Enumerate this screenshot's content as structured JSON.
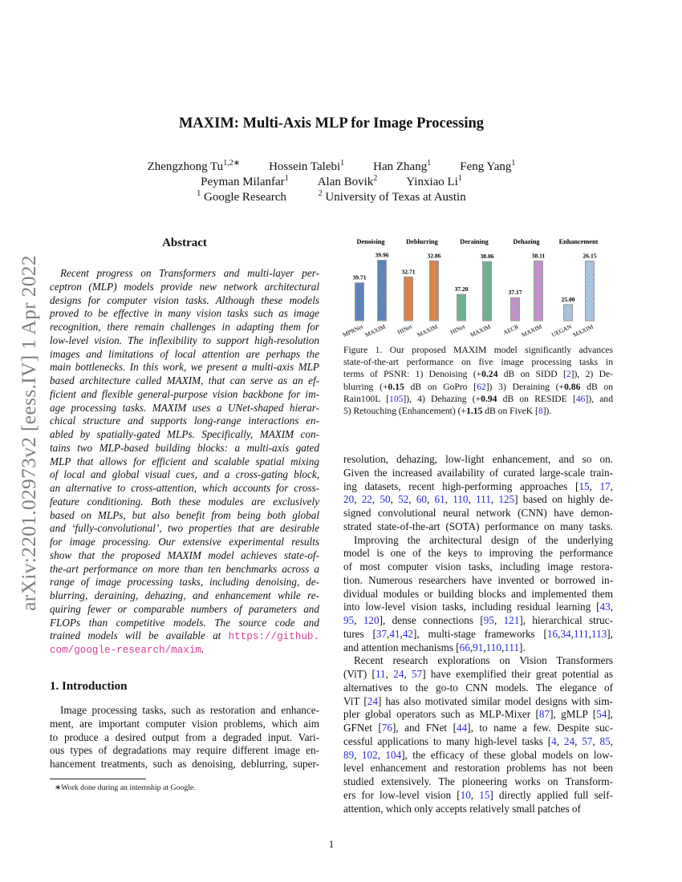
{
  "arxiv_stamp": "arXiv:2201.02973v2  [eess.IV]  1 Apr 2022",
  "title": "MAXIM: Multi-Axis MLP for Image Processing",
  "authors_rows": [
    [
      {
        "name": "Zhengzhong Tu",
        "sup": "1,2∗"
      },
      {
        "name": "Hossein Talebi",
        "sup": "1"
      },
      {
        "name": "Han Zhang",
        "sup": "1"
      },
      {
        "name": "Feng Yang",
        "sup": "1"
      }
    ],
    [
      {
        "name": "Peyman Milanfar",
        "sup": "1"
      },
      {
        "name": "Alan Bovik",
        "sup": "2"
      },
      {
        "name": "Yinxiao Li",
        "sup": "1"
      }
    ]
  ],
  "affiliations": [
    {
      "sup": "1",
      "name": "Google Research"
    },
    {
      "sup": "2",
      "name": "University of Texas at Austin"
    }
  ],
  "abstract": {
    "heading": "Abstract",
    "lines": [
      "Recent progress on Transformers and multi-layer per-",
      "ceptron (MLP) models provide new network architectural",
      "designs for computer vision tasks. Although these models",
      "proved to be effective in many vision tasks such as image",
      "recognition, there remain challenges in adapting them for",
      "low-level vision. The inflexibility to support high-resolution",
      "images and limitations of local attention are perhaps the",
      "main bottlenecks. In this work, we present a multi-axis MLP",
      "based architecture called MAXIM, that can serve as an ef-",
      "ficient and flexible general-purpose vision backbone for im-",
      "age processing tasks. MAXIM uses a UNet-shaped hierar-",
      "chical structure and supports long-range interactions en-",
      "abled by spatially-gated MLPs. Specifically, MAXIM con-",
      "tains two MLP-based building blocks: a multi-axis gated",
      "MLP that allows for efficient and scalable spatial mixing",
      "of local and global visual cues, and a cross-gating block,",
      "an alternative to cross-attention, which accounts for cross-",
      "feature conditioning. Both these modules are exclusively",
      "based on MLPs, but also benefit from being both global",
      "and ‘fully-convolutional’, two properties that are desirable",
      "for image processing. Our extensive experimental results",
      "show that the proposed MAXIM model achieves state-of-",
      "the-art performance on more than ten benchmarks across a",
      "range of image processing tasks, including denoising, de-",
      "blurring, deraining, dehazing, and enhancement while re-",
      "quiring fewer or comparable numbers of parameters and",
      "FLOPs than competitive models. The source code and"
    ],
    "line_pre_url": "trained models will be available at",
    "url_part1": "https://github.",
    "url_part2": "com/google-research/maxim",
    "url_end": "."
  },
  "introduction": {
    "heading": "1. Introduction",
    "lines": [
      "Image processing tasks, such as restoration and enhance-",
      "ment, are important computer vision problems, which aim",
      "to produce a desired output from a degraded input. Vari-",
      "ous types of degradations may require different image en-",
      "hancement treatments, such as denoising, deblurring, super-"
    ]
  },
  "footnote": "∗Work done during an internship at Google.",
  "figure_caption": [
    "Figure 1.  Our proposed MAXIM model significantly advances",
    "state-of-the-art performance on five image processing tasks in",
    "terms of PSNR: 1) Denoising (+0.24 dB on SIDD [2]), 2) De-",
    "blurring (+0.15 dB on GoPro [62]) 3) Deraining (+0.86 dB on",
    "Rain100L [105]), 4) Dehazing (+0.94 dB on RESIDE [46]), and",
    "5) Retouching (Enhancement) (+1.15 dB on FiveK [8])."
  ],
  "right_paragraphs": [
    {
      "indent": false,
      "lines": [
        "resolution, dehazing, low-light enhancement, and so on.",
        "Given the increased availability of curated large-scale train-",
        "ing datasets, recent high-performing approaches [15, 17,",
        "20, 22, 50, 52, 60, 61, 110, 111, 125] based on highly de-",
        "signed convolutional neural network (CNN) have demon-",
        "strated state-of-the-art (SOTA) performance on many tasks."
      ]
    },
    {
      "indent": true,
      "lines": [
        "Improving the architectural design of the underlying",
        "model is one of the keys to improving the performance",
        "of most computer vision tasks, including image restora-",
        "tion. Numerous researchers have invented or borrowed in-",
        "dividual modules or building blocks and implemented them",
        "into low-level vision tasks, including residual learning [43,",
        "95, 120], dense connections [95, 121], hierarchical struc-",
        "tures [37,41,42], multi-stage frameworks [16,34,111,113],",
        "and attention mechanisms  [66,91,110,111]."
      ]
    },
    {
      "indent": true,
      "lines": [
        "Recent research explorations on Vision Transformers",
        "(ViT) [11, 24, 57] have exemplified their great potential as",
        "alternatives to the go-to CNN models. The elegance of",
        "ViT [24] has also motivated similar model designs with sim-",
        "pler global operators such as MLP-Mixer [87], gMLP [54],",
        "GFNet [76], and FNet [44], to name a few. Despite suc-",
        "cessful applications to many high-level tasks [4, 24, 57, 85,",
        "89, 102, 104], the efficacy of these global models on low-",
        "level enhancement and restoration problems has not been",
        "studied extensively. The pioneering works on Transform-",
        "ers for low-level vision [10, 15] directly applied full self-",
        "attention, which only accepts relatively small patches of"
      ]
    }
  ],
  "page_number": "1",
  "colors": {
    "citation": "#2a2ad6",
    "url": "#d13c9a",
    "arxiv_stamp": "#7f7f7f"
  },
  "chart_data": {
    "type": "bar",
    "panels": [
      {
        "title": "Denoising",
        "categories": [
          "MPRNet",
          "MAXIM"
        ],
        "values": [
          39.71,
          39.96
        ],
        "ylim": [
          39.29,
          40.0
        ],
        "color": "#5b80c6",
        "dotted": true
      },
      {
        "title": "Deblurring",
        "categories": [
          "HINet",
          "MAXIM"
        ],
        "values": [
          32.71,
          32.86
        ],
        "ylim": [
          32.3,
          32.9
        ],
        "color": "#d7844f",
        "dotted": false
      },
      {
        "title": "Deraining",
        "categories": [
          "HINet",
          "MAXIM"
        ],
        "values": [
          37.2,
          38.06
        ],
        "ylim": [
          36.51,
          38.19
        ],
        "color": "#6db28f",
        "dotted": false
      },
      {
        "title": "Dehazing",
        "categories": [
          "AECR",
          "MAXIM"
        ],
        "values": [
          37.17,
          38.11
        ],
        "ylim": [
          36.58,
          38.22
        ],
        "color": "#c48fd6",
        "dotted": true
      },
      {
        "title": "Enhancement",
        "categories": [
          "UEGAN",
          "MAXIM"
        ],
        "values": [
          25.0,
          26.15
        ],
        "ylim": [
          24.57,
          26.27
        ],
        "color": "#a9c3ec",
        "dotted": true
      }
    ],
    "xlabel": "",
    "ylabel": "",
    "grid": false
  }
}
